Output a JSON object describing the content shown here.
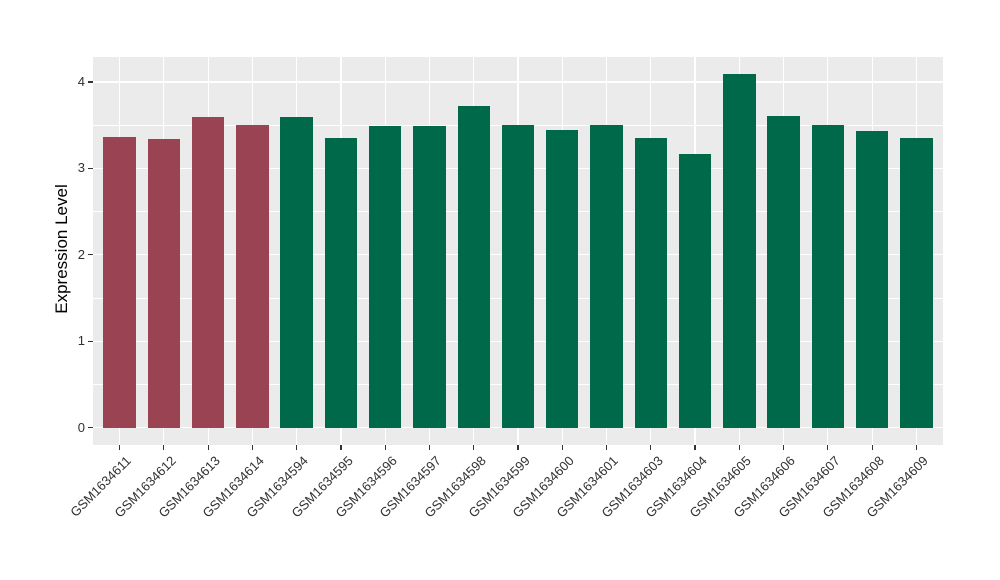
{
  "figure": {
    "background": "#FFFFFF",
    "panel_background": "#EBEBEB",
    "grid_color": "#FFFFFF",
    "tick_color": "#333333",
    "tick_label_color": "#303030"
  },
  "chart_data": {
    "type": "bar",
    "title": "",
    "xlabel": "",
    "ylabel": "Expression Level",
    "ylim": [
      -0.2,
      4.29
    ],
    "yticks": [
      0,
      1,
      2,
      3,
      4
    ],
    "grid": "white major+minor horizontal lines, white major vertical line per category, on gray panel",
    "legend_position": "none",
    "categories": [
      "GSM1634611",
      "GSM1634612",
      "GSM1634613",
      "GSM1634614",
      "GSM1634594",
      "GSM1634595",
      "GSM1634596",
      "GSM1634597",
      "GSM1634598",
      "GSM1634599",
      "GSM1634600",
      "GSM1634601",
      "GSM1634603",
      "GSM1634604",
      "GSM1634605",
      "GSM1634606",
      "GSM1634607",
      "GSM1634608",
      "GSM1634609"
    ],
    "values": [
      3.37,
      3.34,
      3.6,
      3.5,
      3.6,
      3.35,
      3.49,
      3.49,
      3.72,
      3.5,
      3.44,
      3.5,
      3.35,
      3.17,
      4.09,
      3.61,
      3.5,
      3.43,
      3.35
    ],
    "bar_groups": [
      "red",
      "red",
      "red",
      "red",
      "green",
      "green",
      "green",
      "green",
      "green",
      "green",
      "green",
      "green",
      "green",
      "green",
      "green",
      "green",
      "green",
      "green",
      "green"
    ],
    "group_colors": {
      "red": "#9A4453",
      "green": "#006949"
    }
  }
}
